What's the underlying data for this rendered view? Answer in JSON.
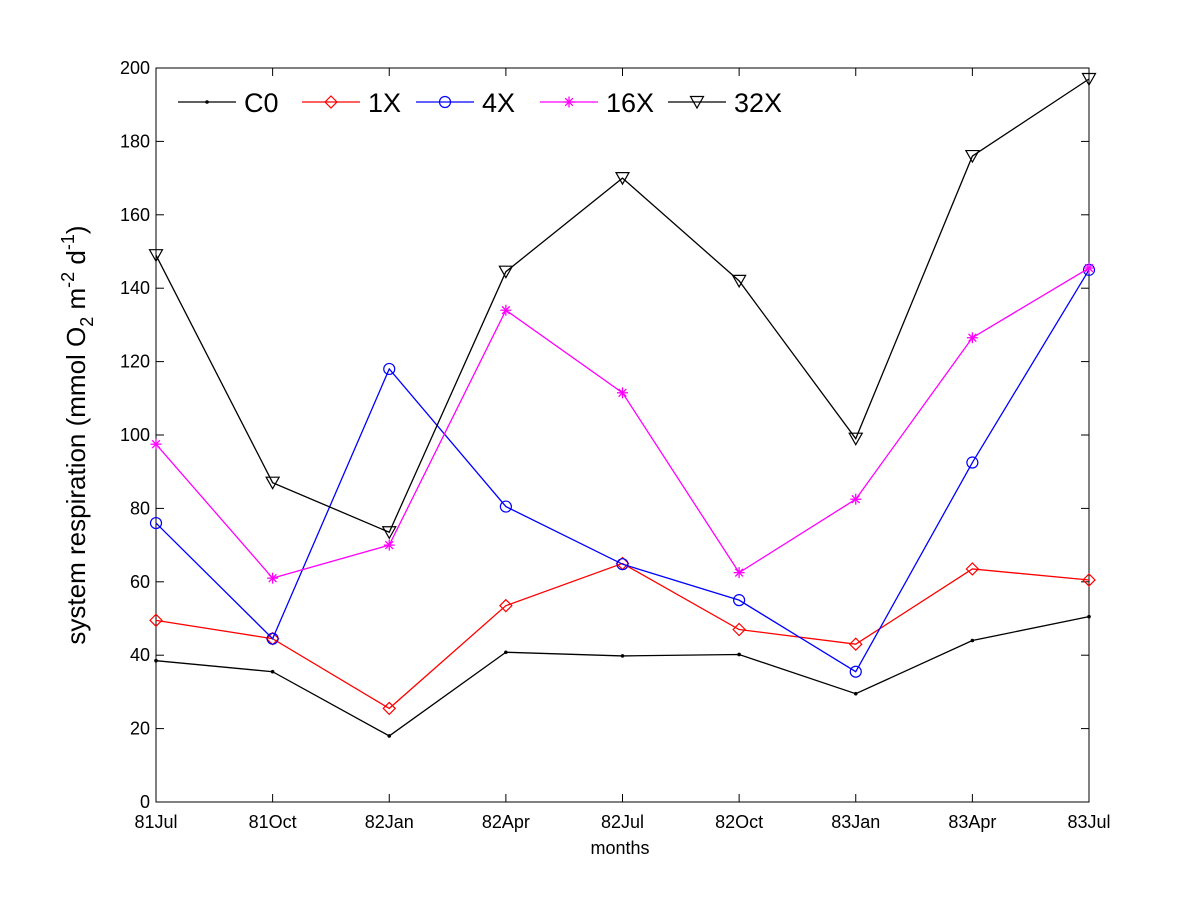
{
  "chart_data": {
    "type": "line",
    "title": "",
    "xlabel": "months",
    "ylabel_main": "system respiration (mmol O",
    "ylabel_sub1": "2",
    "ylabel_mid1": " m",
    "ylabel_sup1": "-2",
    "ylabel_mid2": " d",
    "ylabel_sup2": "-1",
    "ylabel_end": ")",
    "ylim": [
      0,
      200
    ],
    "yticks": [
      0,
      20,
      40,
      60,
      80,
      100,
      120,
      140,
      160,
      180,
      200
    ],
    "categories": [
      "81Jul",
      "81Oct",
      "82Jan",
      "82Apr",
      "82Jul",
      "82Oct",
      "83Jan",
      "83Apr",
      "83Jul"
    ],
    "grid": false,
    "legend_position": "top-left",
    "series": [
      {
        "name": "C0",
        "color": "#000000",
        "marker": "point",
        "values": [
          38.5,
          35.5,
          18,
          40.8,
          39.8,
          40.2,
          29.5,
          44,
          50.5
        ]
      },
      {
        "name": "1X",
        "color": "#ff0000",
        "marker": "diamond",
        "values": [
          49.5,
          44.5,
          25.5,
          53.5,
          65,
          47,
          43,
          63.5,
          60.5
        ]
      },
      {
        "name": "4X",
        "color": "#0000ff",
        "marker": "circle",
        "values": [
          76,
          44.5,
          118,
          80.5,
          64.8,
          55,
          35.5,
          92.5,
          145
        ]
      },
      {
        "name": "16X",
        "color": "#ff00ff",
        "marker": "asterisk",
        "values": [
          97.5,
          61,
          70,
          134,
          111.5,
          62.5,
          82.5,
          126.5,
          145.5
        ]
      },
      {
        "name": "32X",
        "color": "#000000",
        "marker": "triangle-down",
        "values": [
          149,
          87,
          73.5,
          144.5,
          170,
          142,
          99,
          176,
          197
        ]
      }
    ]
  }
}
